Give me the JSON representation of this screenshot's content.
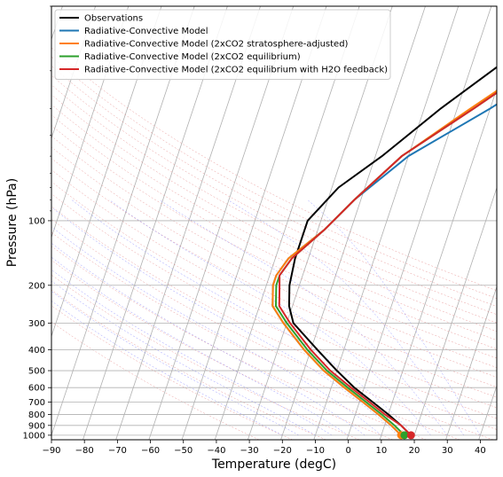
{
  "chart_data": {
    "type": "line",
    "subtype": "skew-T log-P diagram",
    "xlabel": "Temperature (degC)",
    "ylabel": "Pressure (hPa)",
    "xlim": [
      -90,
      45
    ],
    "ylim": [
      1050,
      10
    ],
    "yscale": "log",
    "xticks": [
      -90,
      -80,
      -70,
      -60,
      -50,
      -40,
      -30,
      -20,
      -10,
      0,
      10,
      20,
      30,
      40
    ],
    "yticks": [
      100,
      200,
      300,
      400,
      500,
      600,
      700,
      800,
      900,
      1000
    ],
    "grid": true,
    "legend_position": "top-left",
    "background_lines": [
      "isotherms",
      "dry adiabats",
      "moist adiabats",
      "mixing ratio"
    ],
    "series": [
      {
        "name": "Observations",
        "color": "#000000",
        "points": [
          [
            19,
            1000
          ],
          [
            15,
            900
          ],
          [
            10,
            800
          ],
          [
            4,
            700
          ],
          [
            -3,
            600
          ],
          [
            -10,
            500
          ],
          [
            -18,
            400
          ],
          [
            -28,
            300
          ],
          [
            -31,
            250
          ],
          [
            -33,
            200
          ],
          [
            -34,
            150
          ],
          [
            -34,
            100
          ],
          [
            -28,
            70
          ],
          [
            -18,
            50
          ],
          [
            -5,
            30
          ],
          [
            15,
            15
          ],
          [
            33,
            10
          ]
        ]
      },
      {
        "name": "Radiative-Convective Model",
        "color": "#1f77b4",
        "points": [
          [
            16,
            1000
          ],
          [
            12,
            900
          ],
          [
            7,
            800
          ],
          [
            1,
            700
          ],
          [
            -6,
            600
          ],
          [
            -14,
            500
          ],
          [
            -22,
            400
          ],
          [
            -31,
            300
          ],
          [
            -36,
            250
          ],
          [
            -38,
            200
          ],
          [
            -38,
            180
          ],
          [
            -36,
            150
          ],
          [
            -28,
            110
          ],
          [
            -22,
            80
          ],
          [
            -10,
            50
          ],
          [
            10,
            30
          ],
          [
            48,
            10
          ]
        ]
      },
      {
        "name": "Radiative-Convective Model (2xCO2 stratosphere-adjusted)",
        "color": "#ff7f0e",
        "points": [
          [
            16,
            1000
          ],
          [
            12,
            900
          ],
          [
            7,
            800
          ],
          [
            1,
            700
          ],
          [
            -6,
            600
          ],
          [
            -14,
            500
          ],
          [
            -22,
            400
          ],
          [
            -31,
            300
          ],
          [
            -36,
            250
          ],
          [
            -38,
            200
          ],
          [
            -38,
            180
          ],
          [
            -36,
            150
          ],
          [
            -28,
            110
          ],
          [
            -22,
            80
          ],
          [
            -12,
            50
          ],
          [
            4,
            30
          ],
          [
            40,
            10
          ]
        ]
      },
      {
        "name": "Radiative-Convective Model (2xCO2 equilibrium)",
        "color": "#2ca02c",
        "points": [
          [
            17,
            1000
          ],
          [
            13,
            900
          ],
          [
            8,
            800
          ],
          [
            2,
            700
          ],
          [
            -5,
            600
          ],
          [
            -13,
            500
          ],
          [
            -21,
            400
          ],
          [
            -30,
            300
          ],
          [
            -35,
            250
          ],
          [
            -37,
            200
          ],
          [
            -37,
            180
          ],
          [
            -35,
            150
          ],
          [
            -28,
            110
          ],
          [
            -22,
            80
          ],
          [
            -12,
            50
          ],
          [
            5,
            30
          ],
          [
            40,
            10
          ]
        ]
      },
      {
        "name": "Radiative-Convective Model (2xCO2 equilibrium with H2O feedback)",
        "color": "#d62728",
        "points": [
          [
            19,
            1000
          ],
          [
            15,
            900
          ],
          [
            9,
            800
          ],
          [
            3,
            700
          ],
          [
            -4,
            600
          ],
          [
            -12,
            500
          ],
          [
            -20,
            400
          ],
          [
            -29,
            300
          ],
          [
            -34,
            250
          ],
          [
            -36,
            200
          ],
          [
            -37,
            180
          ],
          [
            -35,
            150
          ],
          [
            -28,
            110
          ],
          [
            -22,
            80
          ],
          [
            -12,
            50
          ],
          [
            5,
            30
          ],
          [
            40,
            10
          ]
        ]
      }
    ],
    "surface_markers": [
      {
        "x": 16,
        "y": 1000,
        "color": "#ff7f0e"
      },
      {
        "x": 17,
        "y": 1000,
        "color": "#2ca02c"
      },
      {
        "x": 19,
        "y": 1000,
        "color": "#d62728"
      }
    ]
  }
}
